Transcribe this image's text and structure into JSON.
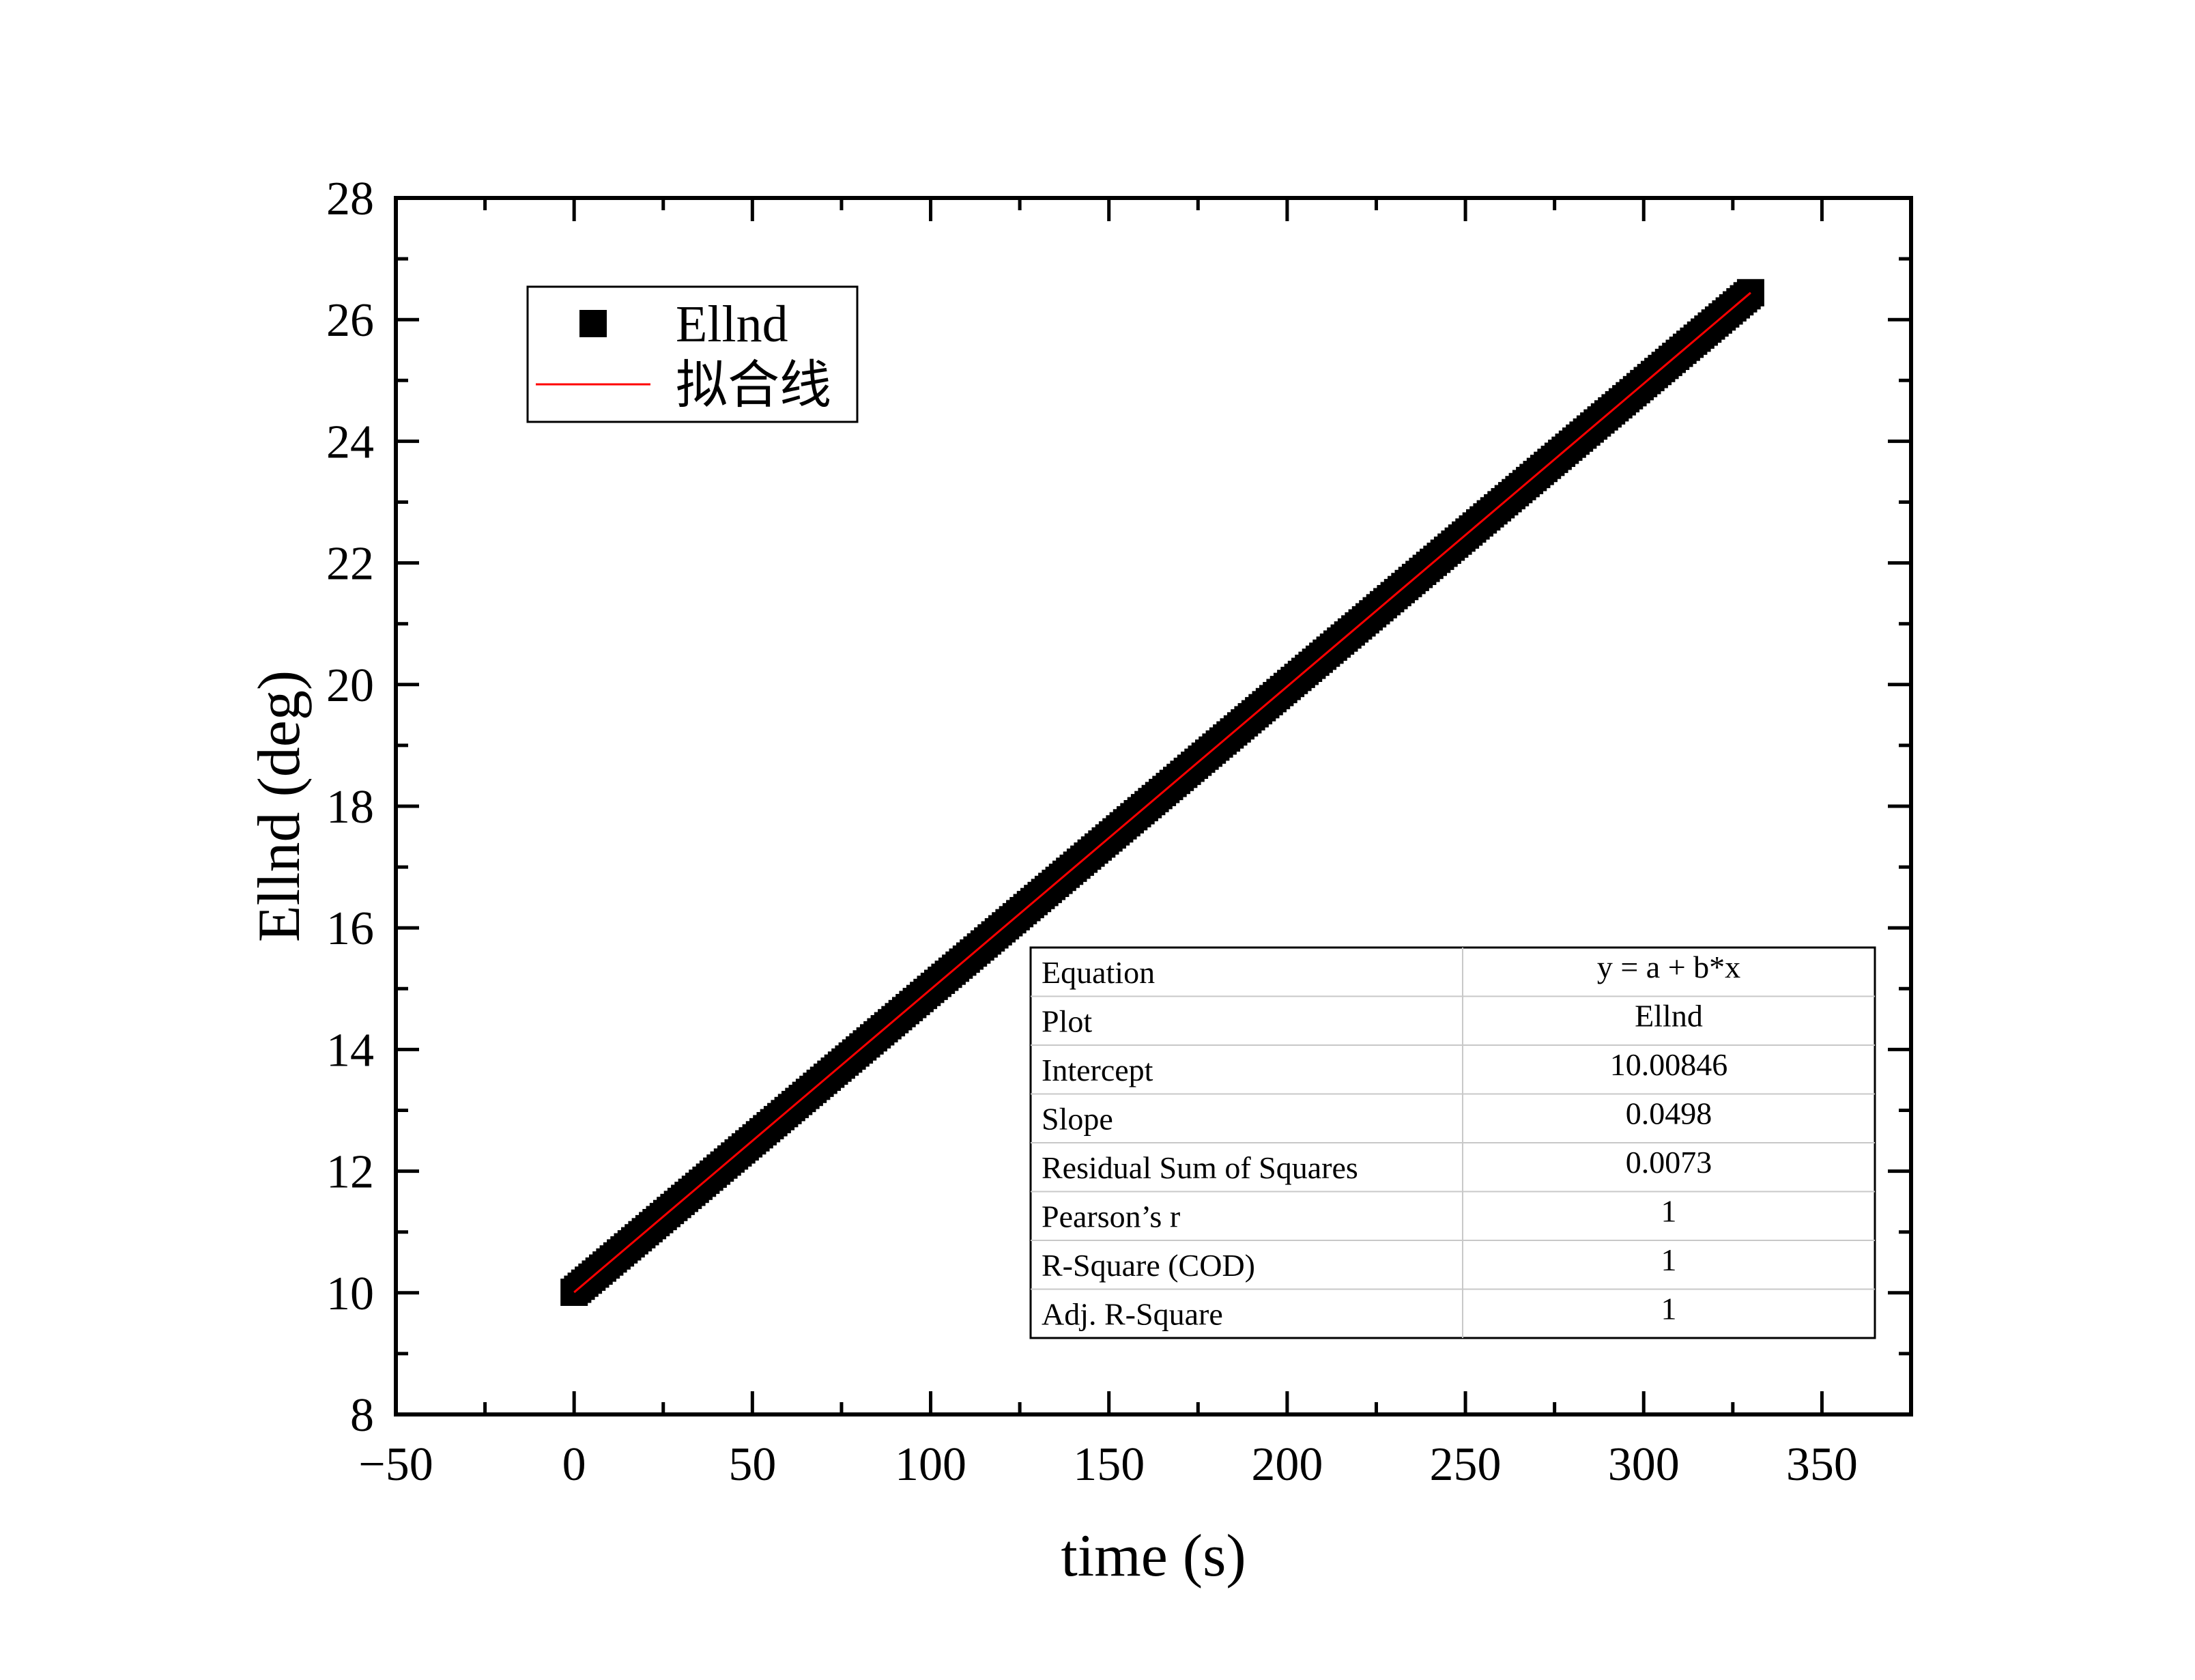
{
  "chart_data": {
    "type": "scatter",
    "xlabel": "time (s)",
    "ylabel": "Ellnd (deg)",
    "xlim": [
      -50,
      375
    ],
    "ylim": [
      8,
      28
    ],
    "xticks": [
      -50,
      0,
      50,
      100,
      150,
      200,
      250,
      300,
      350
    ],
    "xtick_labels": [
      "−50",
      "0",
      "50",
      "100",
      "150",
      "200",
      "250",
      "300",
      "350"
    ],
    "yticks": [
      8,
      10,
      12,
      14,
      16,
      18,
      20,
      22,
      24,
      26,
      28
    ],
    "ytick_labels": [
      "8",
      "10",
      "12",
      "14",
      "16",
      "18",
      "20",
      "22",
      "24",
      "26",
      "28"
    ],
    "grid": false,
    "legend_position": "top-left",
    "series": [
      {
        "name": "Ellnd",
        "kind": "scatter",
        "marker": "square",
        "color": "#000000",
        "x_range": [
          0,
          330
        ],
        "y_range": [
          10.0085,
          26.44
        ],
        "approx_x_step": 1
      },
      {
        "name": "拟合线",
        "kind": "line",
        "color": "#ff0000",
        "x": [
          0,
          330
        ],
        "y": [
          10.00846,
          26.44186
        ]
      }
    ],
    "fit_table": {
      "rows": [
        {
          "label": "Equation",
          "value": "y = a + b*x"
        },
        {
          "label": "Plot",
          "value": "Ellnd"
        },
        {
          "label": "Intercept",
          "value": "10.00846"
        },
        {
          "label": "Slope",
          "value": "0.0498"
        },
        {
          "label": "Residual Sum of Squares",
          "value": "0.0073"
        },
        {
          "label": "Pearson’s r",
          "value": "1"
        },
        {
          "label": "R-Square (COD)",
          "value": "1"
        },
        {
          "label": "Adj. R-Square",
          "value": "1"
        }
      ]
    }
  }
}
